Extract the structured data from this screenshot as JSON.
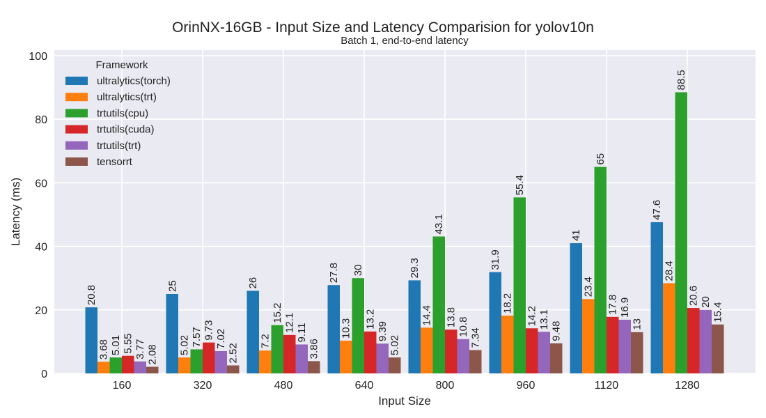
{
  "chart_data": {
    "type": "bar",
    "title": "OrinNX-16GB - Input Size and Latency Comparision for yolov10n",
    "subtitle": "Batch 1, end-to-end latency",
    "xlabel": "Input Size",
    "ylabel": "Latency (ms)",
    "ylim": [
      0,
      100
    ],
    "yticks": [
      "0",
      "20",
      "40",
      "60",
      "80",
      "100"
    ],
    "grid": true,
    "legend_title": "Framework",
    "legend_position": "top-left",
    "categories": [
      "160",
      "320",
      "480",
      "640",
      "800",
      "960",
      "1120",
      "1280"
    ],
    "series": [
      {
        "name": "ultralytics(torch)",
        "color": "#1f77b4",
        "values": [
          20.8,
          25,
          26,
          27.8,
          29.3,
          31.9,
          41,
          47.6
        ],
        "labels": [
          "20.8",
          "25",
          "26",
          "27.8",
          "29.3",
          "31.9",
          "41",
          "47.6"
        ]
      },
      {
        "name": "ultralytics(trt)",
        "color": "#ff7f0e",
        "values": [
          3.68,
          5.02,
          7.2,
          10.3,
          14.4,
          18.2,
          23.4,
          28.4
        ],
        "labels": [
          "3.68",
          "5.02",
          "7.2",
          "10.3",
          "14.4",
          "18.2",
          "23.4",
          "28.4"
        ]
      },
      {
        "name": "trtutils(cpu)",
        "color": "#2ca02c",
        "values": [
          5.01,
          7.57,
          15.2,
          30,
          43.1,
          55.4,
          65,
          88.5
        ],
        "labels": [
          "5.01",
          "7.57",
          "15.2",
          "30",
          "43.1",
          "55.4",
          "65",
          "88.5"
        ]
      },
      {
        "name": "trtutils(cuda)",
        "color": "#d62728",
        "values": [
          5.55,
          9.73,
          12.1,
          13.2,
          13.8,
          14.2,
          17.8,
          20.6
        ],
        "labels": [
          "5.55",
          "9.73",
          "12.1",
          "13.2",
          "13.8",
          "14.2",
          "17.8",
          "20.6"
        ]
      },
      {
        "name": "trtutils(trt)",
        "color": "#9467bd",
        "values": [
          3.77,
          7.02,
          9.11,
          9.39,
          10.8,
          13.1,
          16.9,
          20
        ],
        "labels": [
          "3.77",
          "7.02",
          "9.11",
          "9.39",
          "10.8",
          "13.1",
          "16.9",
          "20"
        ]
      },
      {
        "name": "tensorrt",
        "color": "#8c564b",
        "values": [
          2.08,
          2.52,
          3.86,
          5.02,
          7.34,
          9.48,
          13,
          15.4
        ],
        "labels": [
          "2.08",
          "2.52",
          "3.86",
          "5.02",
          "7.34",
          "9.48",
          "13",
          "15.4"
        ]
      }
    ]
  }
}
